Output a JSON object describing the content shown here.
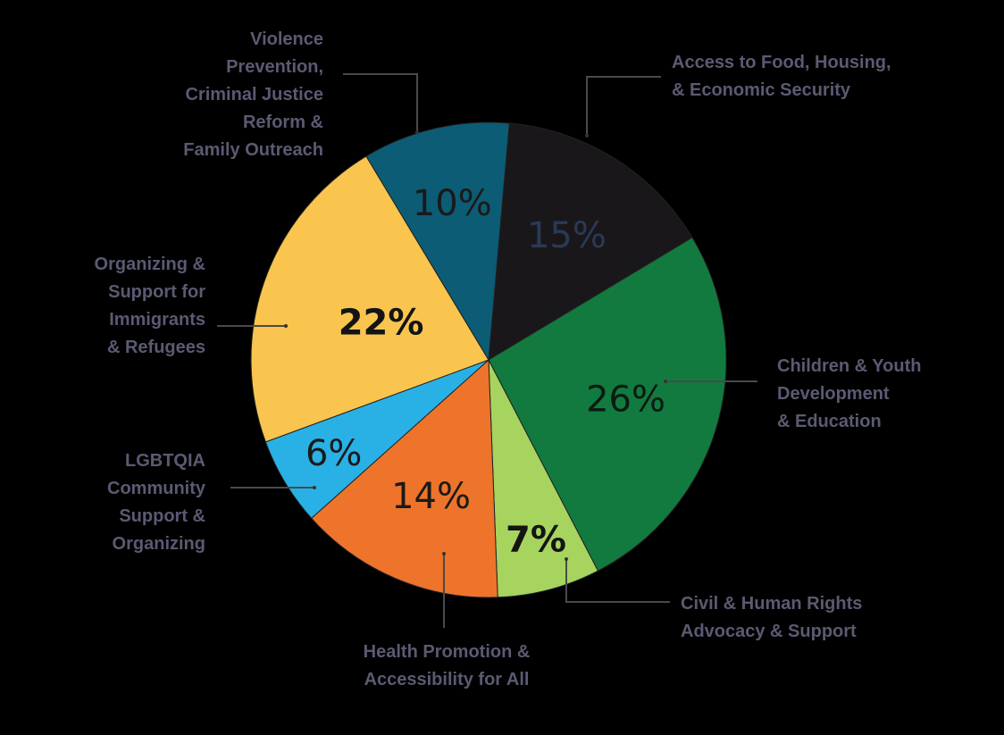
{
  "chart_data": {
    "type": "pie",
    "title": "",
    "slices": [
      {
        "label_lines": [
          "Access to Food, Housing,",
          "& Economic Security"
        ],
        "value": 15,
        "display": "15%",
        "color": "#19171a",
        "text_color": "#2a3a55",
        "bold": false
      },
      {
        "label_lines": [
          "Children & Youth",
          "Development",
          "& Education"
        ],
        "value": 26,
        "display": "26%",
        "color": "#127a3f",
        "text_color": "#0a1a12",
        "bold": false
      },
      {
        "label_lines": [
          "Civil & Human Rights",
          "Advocacy & Support"
        ],
        "value": 7,
        "display": "7%",
        "color": "#a6d45f",
        "text_color": "#141414",
        "bold": true
      },
      {
        "label_lines": [
          "Health Promotion &",
          "Accessibility for All"
        ],
        "value": 14,
        "display": "14%",
        "color": "#ee742b",
        "text_color": "#1a1a1a",
        "bold": false
      },
      {
        "label_lines": [
          "LGBTQIA",
          "Community",
          "Support &",
          "Organizing"
        ],
        "value": 6,
        "display": "6%",
        "color": "#29b1e6",
        "text_color": "#1a1a1a",
        "bold": false
      },
      {
        "label_lines": [
          "Organizing &",
          "Support for",
          "Immigrants",
          "& Refugees"
        ],
        "value": 22,
        "display": "22%",
        "color": "#f9c54f",
        "text_color": "#141414",
        "bold": true
      },
      {
        "label_lines": [
          "Violence",
          "Prevention,",
          "Criminal Justice",
          "Reform &",
          "Family Outreach"
        ],
        "value": 10,
        "display": "10%",
        "color": "#0c5c75",
        "text_color": "#1a1a1a",
        "bold": false
      }
    ]
  }
}
